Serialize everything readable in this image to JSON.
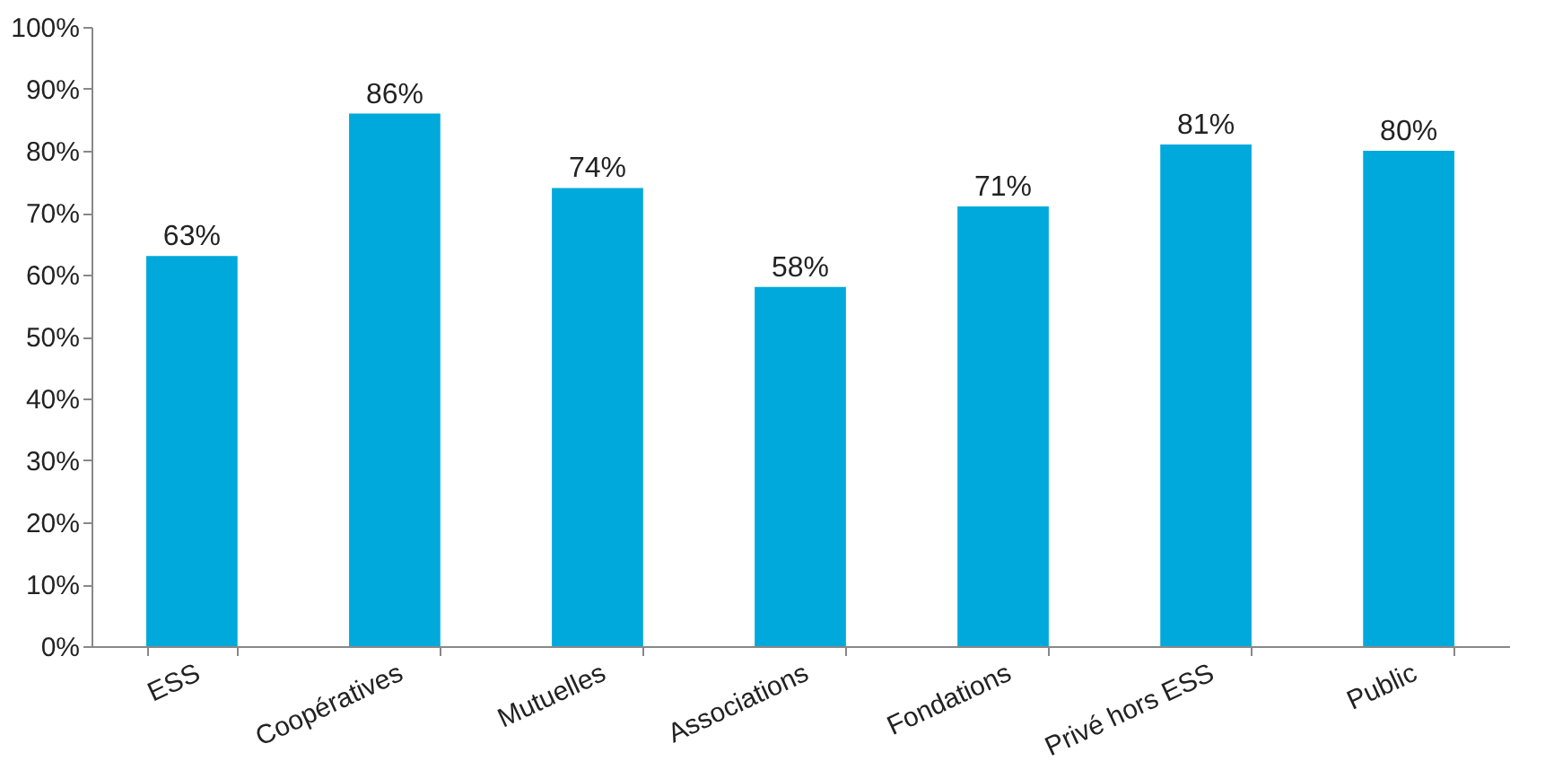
{
  "chart_data": {
    "type": "bar",
    "categories": [
      "ESS",
      "Coopératives",
      "Mutuelles",
      "Associations",
      "Fondations",
      "Privé hors ESS",
      "Public"
    ],
    "values": [
      63,
      86,
      74,
      58,
      71,
      81,
      80
    ],
    "value_labels": [
      "63%",
      "86%",
      "74%",
      "58%",
      "71%",
      "81%",
      "80%"
    ],
    "color": "#00a9dc",
    "ylim": [
      0,
      100
    ],
    "yticks": [
      {
        "value": 0,
        "label": "0%"
      },
      {
        "value": 10,
        "label": "10%"
      },
      {
        "value": 20,
        "label": "20%"
      },
      {
        "value": 30,
        "label": "30%"
      },
      {
        "value": 40,
        "label": "40%"
      },
      {
        "value": 50,
        "label": "50%"
      },
      {
        "value": 60,
        "label": "60%"
      },
      {
        "value": 70,
        "label": "70%"
      },
      {
        "value": 80,
        "label": "80%"
      },
      {
        "value": 90,
        "label": "90%"
      },
      {
        "value": 100,
        "label": "100%"
      }
    ],
    "grid": false
  }
}
